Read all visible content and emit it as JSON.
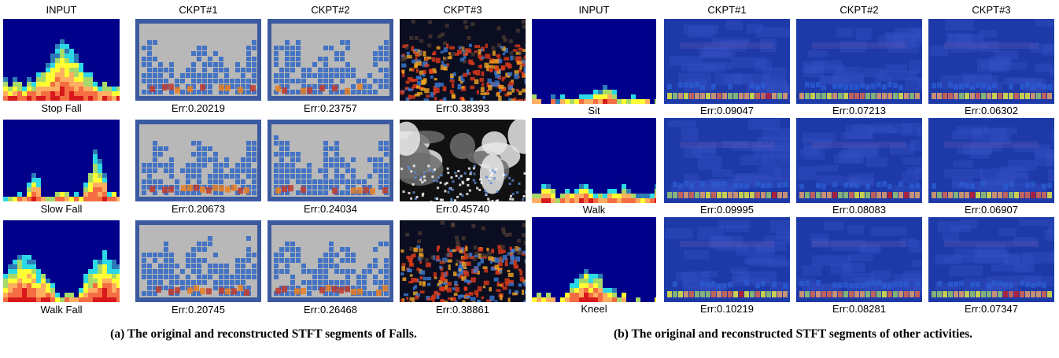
{
  "panel_a": {
    "columns": [
      "INPUT",
      "CKPT#1",
      "CKPT#2",
      "CKPT#3"
    ],
    "rows": [
      {
        "label": "Stop Fall",
        "errors": [
          "Err:0.20219",
          "Err:0.23757",
          "Err:0.38393"
        ]
      },
      {
        "label": "Slow Fall",
        "errors": [
          "Err:0.20673",
          "Err:0.24034",
          "Err:0.45740"
        ]
      },
      {
        "label": "Walk Fall",
        "errors": [
          "Err:0.20745",
          "Err:0.26468",
          "Err:0.38861"
        ]
      }
    ],
    "caption": "(a) The original and reconstructed STFT segments of Falls."
  },
  "panel_b": {
    "columns": [
      "INPUT",
      "CKPT#1",
      "CKPT#2",
      "CKPT#3"
    ],
    "rows": [
      {
        "label": "Sit",
        "errors": [
          "Err:0.09047",
          "Err:0.07213",
          "Err:0.06302"
        ]
      },
      {
        "label": "Walk",
        "errors": [
          "Err:0.09995",
          "Err:0.08083",
          "Err:0.06907"
        ]
      },
      {
        "label": "Kneel",
        "errors": [
          "Err:0.10219",
          "Err:0.08281",
          "Err:0.07347"
        ]
      }
    ],
    "caption": "(b) The original and reconstructed STFT segments of other activities."
  },
  "colors": {
    "spectrogram_background": "#00008b",
    "reconstruction_gray": "#b8b8b8",
    "reconstruction_blue": "#2a3fae",
    "hot": "#d7191c",
    "warm": "#fdae61",
    "yellow": "#ffff33",
    "cyan": "#2bd9e6"
  }
}
